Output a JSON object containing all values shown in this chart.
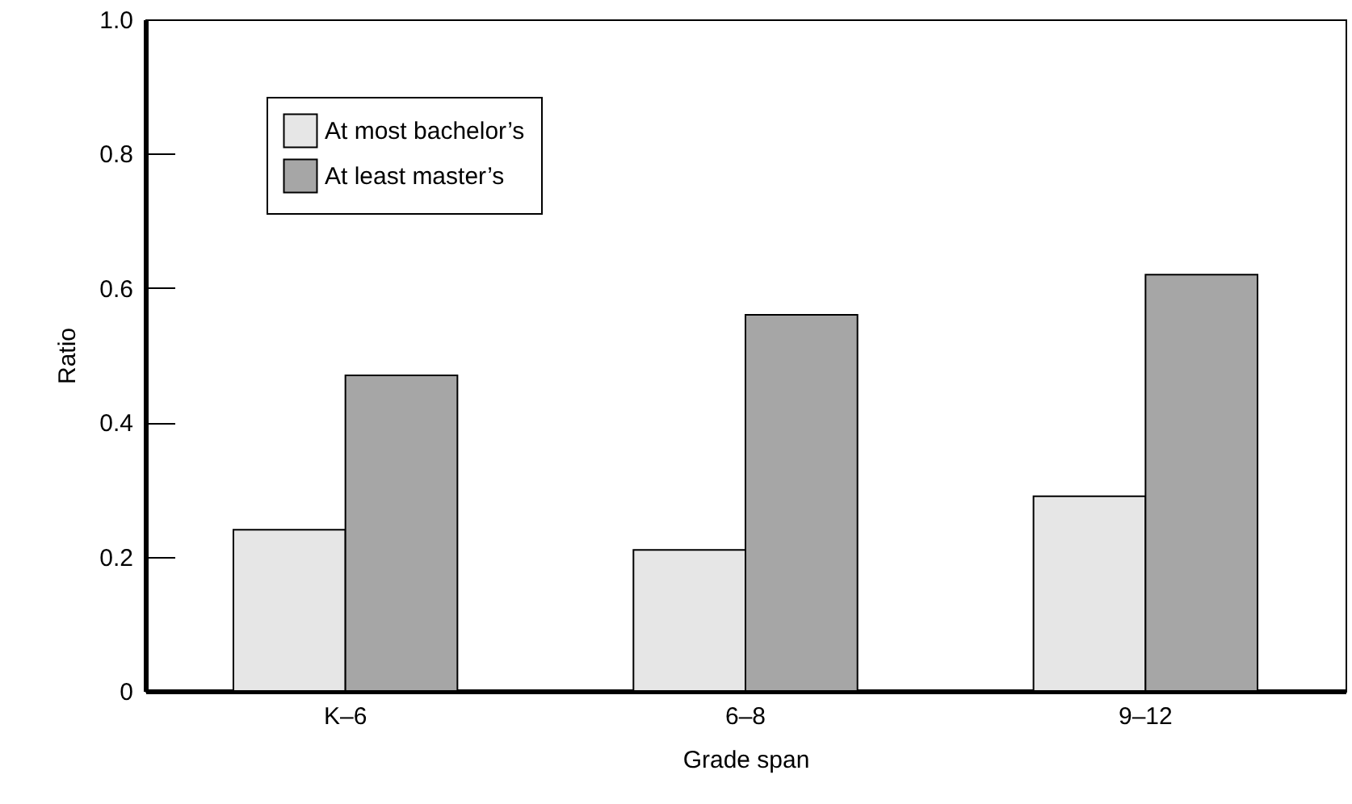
{
  "chart_data": {
    "type": "bar",
    "xlabel": "Grade span",
    "ylabel": "Ratio",
    "categories": [
      "K–6",
      "6–8",
      "9–12"
    ],
    "series": [
      {
        "name": "At most bachelor’s",
        "color": "#e6e6e6",
        "values": [
          0.24,
          0.21,
          0.29
        ]
      },
      {
        "name": "At least master’s",
        "color": "#a6a6a6",
        "values": [
          0.47,
          0.56,
          0.62
        ]
      }
    ],
    "ylim": [
      0,
      1
    ],
    "yticks": [
      0,
      0.2,
      0.4,
      0.6,
      0.8,
      {
        "value": 1,
        "label": "1.0"
      }
    ],
    "legend": "top left"
  }
}
